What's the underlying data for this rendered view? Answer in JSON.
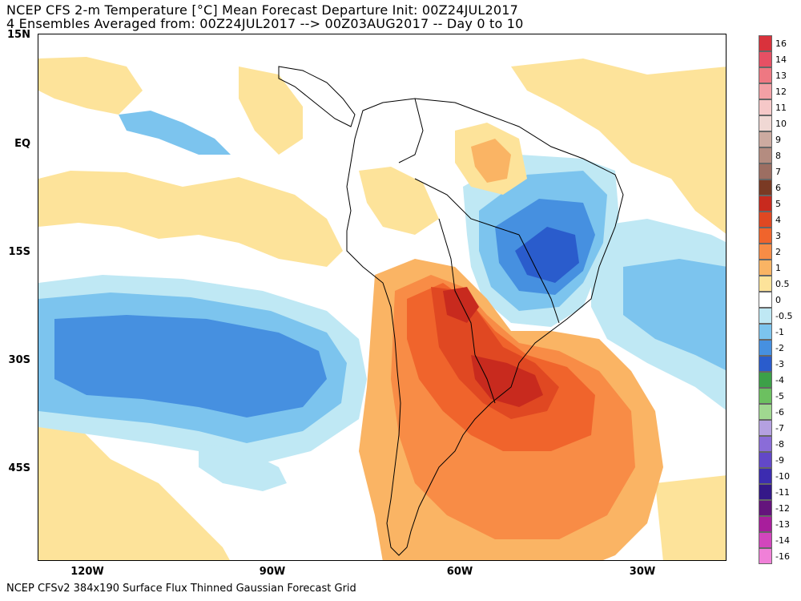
{
  "title_line1": "NCEP CFS 2-m Temperature [°C] Mean Forecast Departure Init: 00Z24JUL2017",
  "title_line2": "4 Ensembles Averaged from: 00Z24JUL2017 --> 00Z03AUG2017 -- Day 0 to 10",
  "footer": "NCEP CFSv2 384x190 Surface Flux Thinned Gaussian Forecast Grid",
  "lat_labels": [
    "15N",
    "EQ",
    "15S",
    "30S",
    "45S"
  ],
  "lon_labels": [
    "120W",
    "90W",
    "60W",
    "30W"
  ],
  "colorbar": {
    "labels": [
      "16",
      "14",
      "13",
      "12",
      "11",
      "10",
      "9",
      "8",
      "7",
      "6",
      "5",
      "4",
      "3",
      "2",
      "1",
      "0.5",
      "0",
      "-0.5",
      "-1",
      "-2",
      "-3",
      "-4",
      "-5",
      "-6",
      "-7",
      "-8",
      "-9",
      "-10",
      "-11",
      "-12",
      "-13",
      "-14",
      "-16"
    ],
    "colors": [
      "#d9323c",
      "#e65064",
      "#ee7882",
      "#f3a0a5",
      "#f6c8c8",
      "#f0d8d4",
      "#ccaaa0",
      "#b48c80",
      "#9c6e62",
      "#7a3a24",
      "#c82a1e",
      "#e04822",
      "#f0642c",
      "#f88c46",
      "#fab464",
      "#fde39a",
      "#ffffff",
      "#bfe8f4",
      "#7cc4ee",
      "#4690e0",
      "#2a5ccc",
      "#3ca048",
      "#6cc060",
      "#a0d890",
      "#b4a0e0",
      "#8a6cd8",
      "#6248c8",
      "#3c2cb0",
      "#341888",
      "#64147c",
      "#a81e9c",
      "#d246bc",
      "#f080d8"
    ]
  },
  "colors": {
    "warm_1": "#fde39a",
    "warm_2": "#fab464",
    "warm_3": "#f88c46",
    "warm_4": "#f0642c",
    "warm_5": "#e04822",
    "warm_6": "#c82a1e",
    "cool_1": "#bfe8f4",
    "cool_2": "#7cc4ee",
    "cool_3": "#4690e0",
    "cool_4": "#2a5ccc"
  }
}
